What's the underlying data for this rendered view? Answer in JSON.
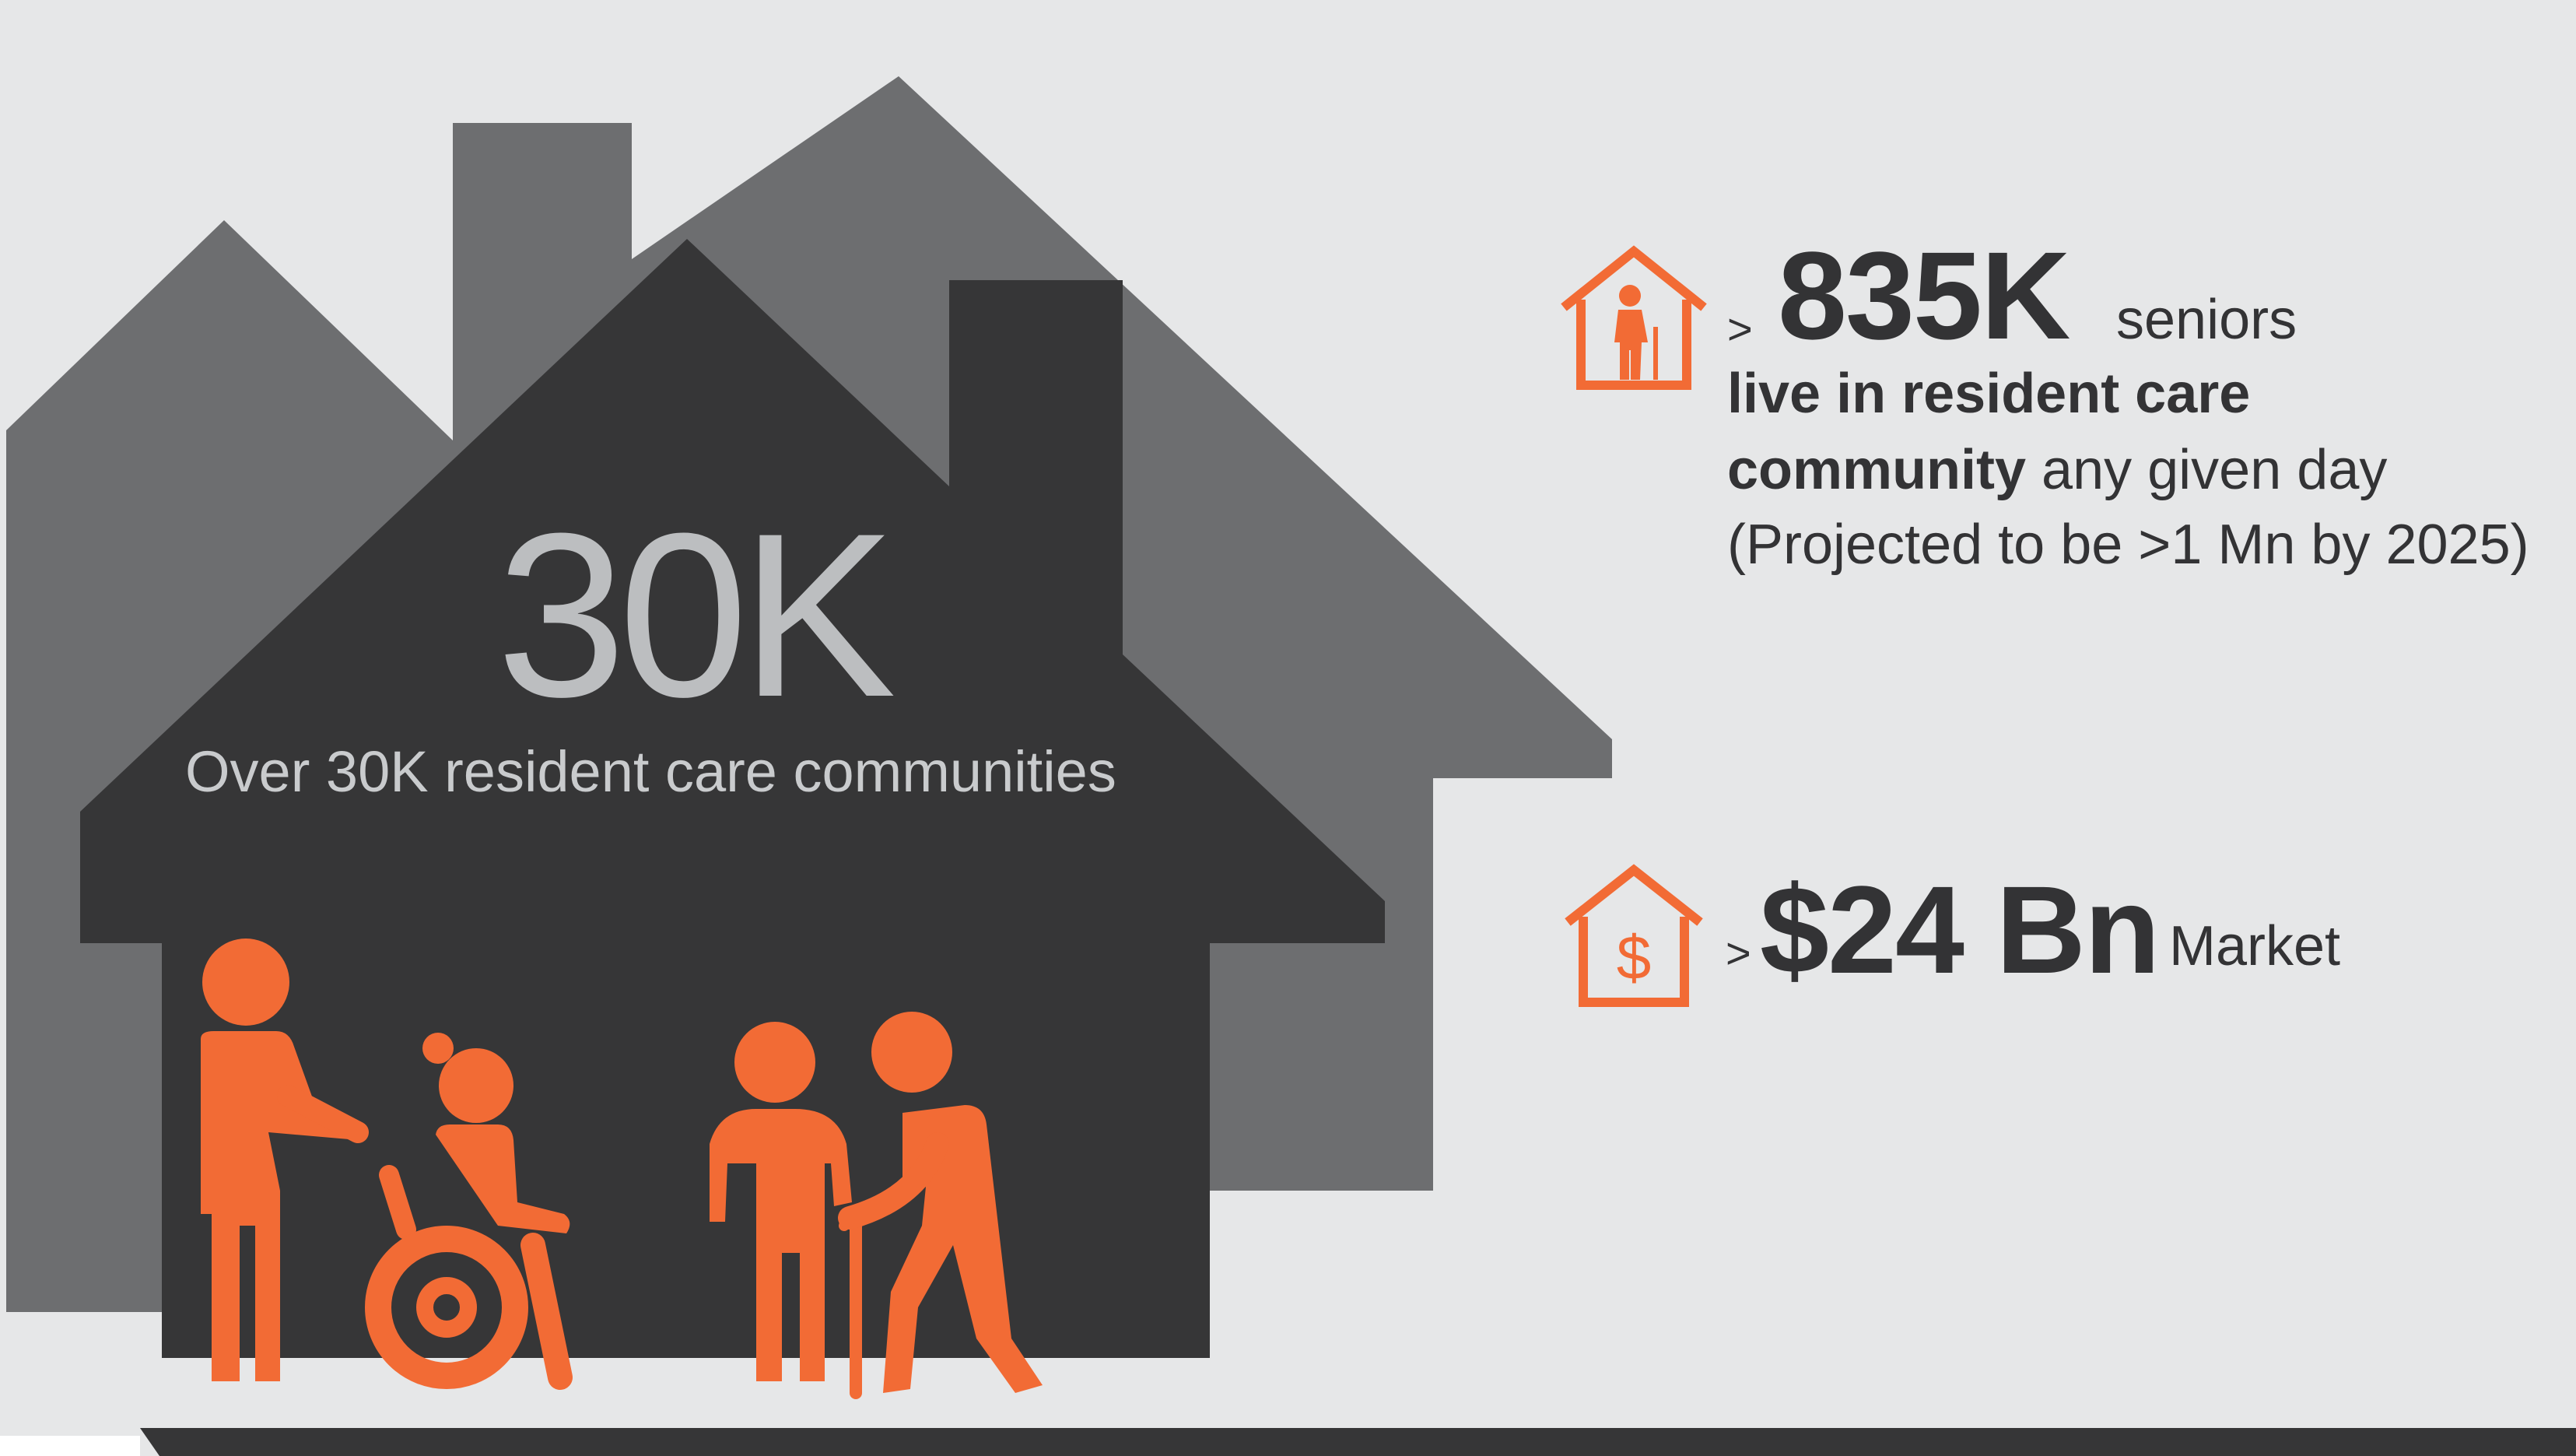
{
  "hero": {
    "number": "30K",
    "caption": "Over 30K resident care communities"
  },
  "stats": {
    "seniors": {
      "prefix": ">",
      "value": "835K",
      "unit": "seniors",
      "line1": "live in resident care",
      "line2_bold": "community",
      "line2_rest": " any given day",
      "line3": "(Projected to be >1 Mn by 2025)",
      "icon": "house-elderly-person-icon"
    },
    "market": {
      "prefix": ">",
      "value": "$24 Bn",
      "unit": "Market",
      "icon": "house-dollar-icon"
    }
  },
  "colors": {
    "background": "#e6e7e8",
    "house_back": "#6d6e70",
    "house_front": "#363637",
    "accent_orange": "#f26b35",
    "hero_text": "#bcbec0",
    "body_text": "#333335",
    "bottom_bar": "#363637"
  }
}
